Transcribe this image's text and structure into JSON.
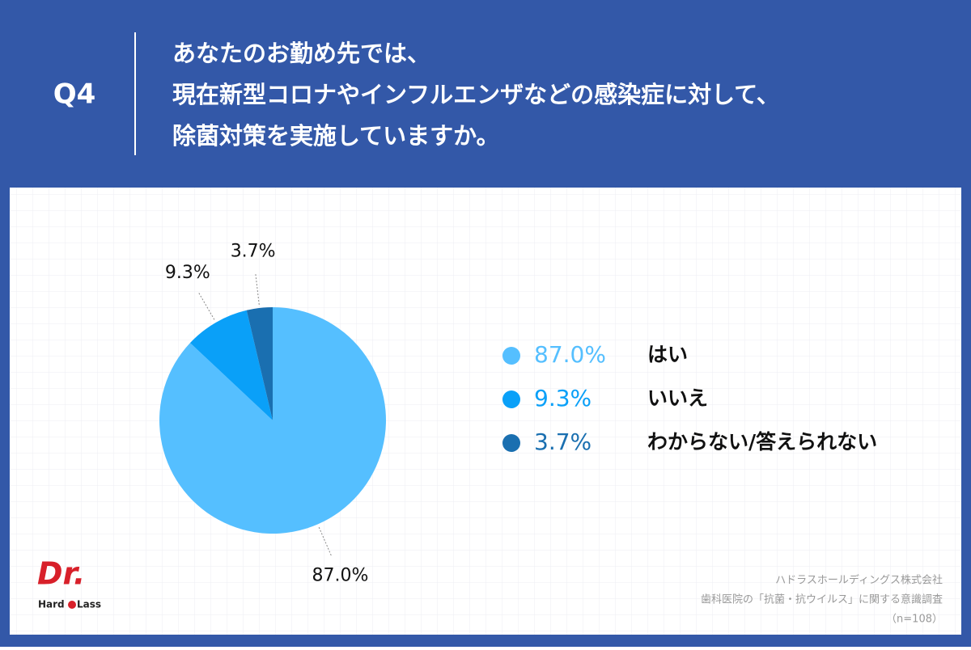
{
  "question_label": "Q4",
  "chart_data": {
    "type": "pie",
    "title": [
      "あなたのお勤め先では、",
      "現在新型コロナやインフルエンザなどの感染症に対して、",
      "除菌対策を実施していますか。"
    ],
    "categories": [
      "はい",
      "いいえ",
      "わからない/答えられない"
    ],
    "values": [
      87.0,
      9.3,
      3.7
    ],
    "value_labels": [
      "87.0%",
      "9.3%",
      "3.7%"
    ],
    "colors": [
      "#55bfff",
      "#0aa0f8",
      "#1a6fb0"
    ]
  },
  "source": [
    "ハドラスホールディングス株式会社",
    "歯科医院の「抗菌・抗ウイルス」に関する意識調査",
    "（n=108）"
  ],
  "logo": {
    "mark": "Dr.",
    "left": "Hard",
    "right": "Lass"
  }
}
